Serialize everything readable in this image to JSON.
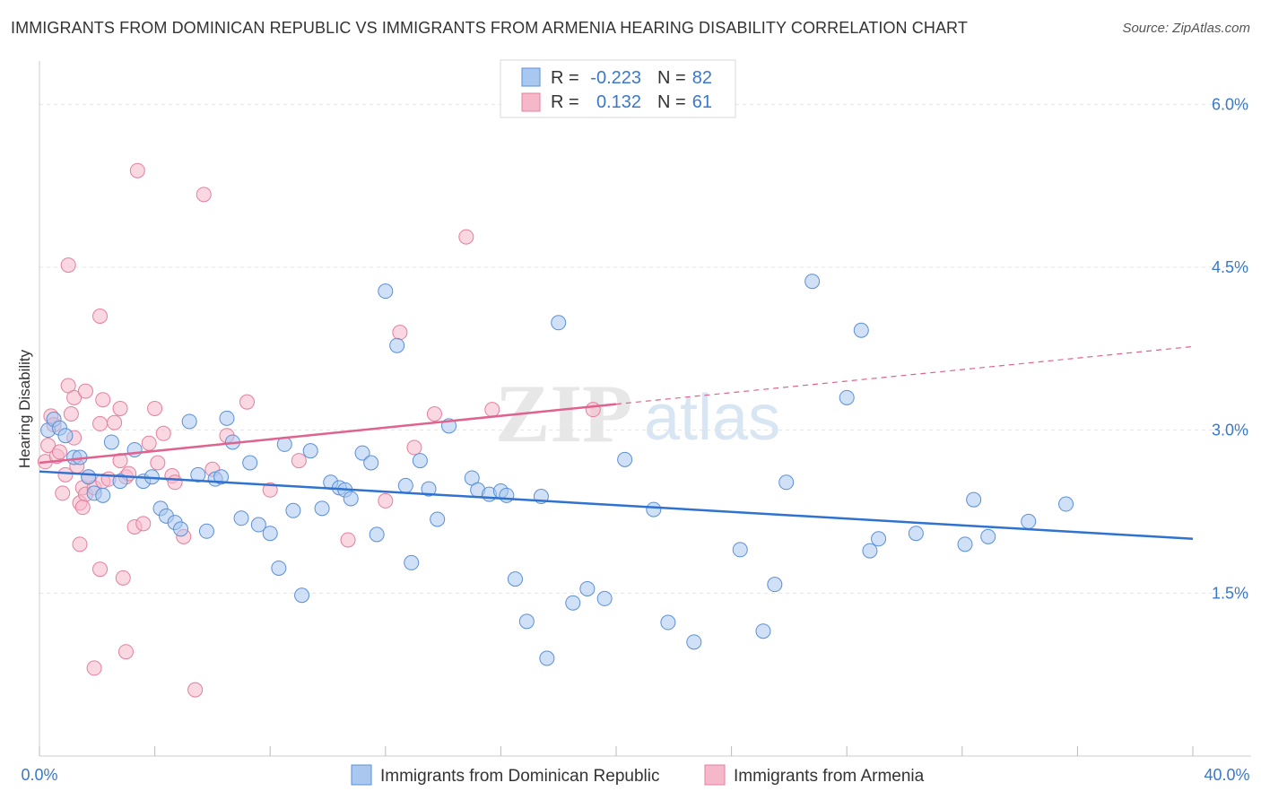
{
  "title": "IMMIGRANTS FROM DOMINICAN REPUBLIC VS IMMIGRANTS FROM ARMENIA HEARING DISABILITY CORRELATION CHART",
  "source": "Source: ZipAtlas.com",
  "watermark": {
    "zip": "ZIP",
    "atlas": "atlas"
  },
  "colors": {
    "blue_fill": "#a9c8f0",
    "blue_stroke": "#5b8fd6",
    "blue_line": "#2f72d0",
    "pink_fill": "#f5b8ca",
    "pink_stroke": "#e47fa0",
    "pink_line": "#e0628e",
    "value_text": "#3a78c9",
    "grid": "#e4e4e4"
  },
  "legend": {
    "row1": {
      "r_label": "R =",
      "r_value": "-0.223",
      "n_label": "N =",
      "n_value": "82"
    },
    "row2": {
      "r_label": "R =",
      "r_value": "0.132",
      "n_label": "N =",
      "n_value": "61"
    }
  },
  "chart_data": {
    "type": "scatter",
    "title": "IMMIGRANTS FROM DOMINICAN REPUBLIC VS IMMIGRANTS FROM ARMENIA HEARING DISABILITY CORRELATION CHART",
    "xlabel": "",
    "ylabel": "Hearing Disability",
    "xlim": [
      0,
      40
    ],
    "ylim": [
      0,
      6.3
    ],
    "x_tick_labels": [
      "0.0%",
      "40.0%"
    ],
    "y_ticks": [
      1.5,
      3.0,
      4.5,
      6.0
    ],
    "y_tick_labels": [
      "1.5%",
      "3.0%",
      "4.5%",
      "6.0%"
    ],
    "grid": true,
    "legend_position": "top-center",
    "series": [
      {
        "name": "Immigrants from Dominican Republic",
        "color": "#a9c8f0",
        "r": -0.223,
        "n": 82,
        "trend": {
          "x": [
            0,
            40
          ],
          "y": [
            2.62,
            2.0
          ]
        },
        "points": [
          [
            0.3,
            3.0
          ],
          [
            0.5,
            3.1
          ],
          [
            0.7,
            3.02
          ],
          [
            0.9,
            2.95
          ],
          [
            1.2,
            2.75
          ],
          [
            1.4,
            2.75
          ],
          [
            1.7,
            2.57
          ],
          [
            1.9,
            2.42
          ],
          [
            2.2,
            2.4
          ],
          [
            2.5,
            2.89
          ],
          [
            2.8,
            2.53
          ],
          [
            3.3,
            2.82
          ],
          [
            3.6,
            2.53
          ],
          [
            3.9,
            2.57
          ],
          [
            4.2,
            2.28
          ],
          [
            4.4,
            2.21
          ],
          [
            4.7,
            2.15
          ],
          [
            4.9,
            2.09
          ],
          [
            5.2,
            3.08
          ],
          [
            5.5,
            2.59
          ],
          [
            5.8,
            2.07
          ],
          [
            6.1,
            2.55
          ],
          [
            6.3,
            2.57
          ],
          [
            6.5,
            3.11
          ],
          [
            6.7,
            2.89
          ],
          [
            7.0,
            2.19
          ],
          [
            7.3,
            2.7
          ],
          [
            7.6,
            2.13
          ],
          [
            8.0,
            2.05
          ],
          [
            8.3,
            1.73
          ],
          [
            8.5,
            2.87
          ],
          [
            8.8,
            2.26
          ],
          [
            9.1,
            1.48
          ],
          [
            9.4,
            2.81
          ],
          [
            9.8,
            2.28
          ],
          [
            10.1,
            2.52
          ],
          [
            10.4,
            2.47
          ],
          [
            10.6,
            2.45
          ],
          [
            10.8,
            2.37
          ],
          [
            11.2,
            2.79
          ],
          [
            11.5,
            2.7
          ],
          [
            11.7,
            2.04
          ],
          [
            12.0,
            4.28
          ],
          [
            12.4,
            3.78
          ],
          [
            12.7,
            2.49
          ],
          [
            12.9,
            1.78
          ],
          [
            13.2,
            2.72
          ],
          [
            13.5,
            2.46
          ],
          [
            13.8,
            2.18
          ],
          [
            14.2,
            3.04
          ],
          [
            15.0,
            2.56
          ],
          [
            15.2,
            2.45
          ],
          [
            15.6,
            2.41
          ],
          [
            16.0,
            2.44
          ],
          [
            16.2,
            2.4
          ],
          [
            16.5,
            1.63
          ],
          [
            16.9,
            1.24
          ],
          [
            17.4,
            2.39
          ],
          [
            17.6,
            0.9
          ],
          [
            18.0,
            3.99
          ],
          [
            18.5,
            1.41
          ],
          [
            19.0,
            1.54
          ],
          [
            19.6,
            1.45
          ],
          [
            20.3,
            2.73
          ],
          [
            21.3,
            2.27
          ],
          [
            21.8,
            1.23
          ],
          [
            22.7,
            1.05
          ],
          [
            24.3,
            1.9
          ],
          [
            25.1,
            1.15
          ],
          [
            25.5,
            1.58
          ],
          [
            25.9,
            2.52
          ],
          [
            26.8,
            4.37
          ],
          [
            28.0,
            3.3
          ],
          [
            28.5,
            3.92
          ],
          [
            28.8,
            1.89
          ],
          [
            29.1,
            2.0
          ],
          [
            30.4,
            2.05
          ],
          [
            32.1,
            1.95
          ],
          [
            32.4,
            2.36
          ],
          [
            32.9,
            2.02
          ],
          [
            34.3,
            2.16
          ],
          [
            35.6,
            2.32
          ]
        ]
      },
      {
        "name": "Immigrants from Armenia",
        "color": "#f5b8ca",
        "r": 0.132,
        "n": 61,
        "trend": {
          "x": [
            0,
            20
          ],
          "y": [
            2.7,
            3.24
          ]
        },
        "trend_dashed": {
          "x": [
            20,
            40
          ],
          "y": [
            3.24,
            3.77
          ]
        },
        "points": [
          [
            0.2,
            2.71
          ],
          [
            0.3,
            2.86
          ],
          [
            0.4,
            3.13
          ],
          [
            0.5,
            3.05
          ],
          [
            0.6,
            2.76
          ],
          [
            0.7,
            2.8
          ],
          [
            0.8,
            2.42
          ],
          [
            0.9,
            2.59
          ],
          [
            1.0,
            3.41
          ],
          [
            1.1,
            3.15
          ],
          [
            1.2,
            2.93
          ],
          [
            1.3,
            2.67
          ],
          [
            1.4,
            2.33
          ],
          [
            1.5,
            2.47
          ],
          [
            1.6,
            2.41
          ],
          [
            1.7,
            2.57
          ],
          [
            1.9,
            2.47
          ],
          [
            2.1,
            3.06
          ],
          [
            2.2,
            2.53
          ],
          [
            2.4,
            2.55
          ],
          [
            2.6,
            3.07
          ],
          [
            2.8,
            2.72
          ],
          [
            3.0,
            2.57
          ],
          [
            3.1,
            2.6
          ],
          [
            3.3,
            2.11
          ],
          [
            3.6,
            2.14
          ],
          [
            3.8,
            2.88
          ],
          [
            4.1,
            2.7
          ],
          [
            4.3,
            2.97
          ],
          [
            4.6,
            2.58
          ],
          [
            1.0,
            4.52
          ],
          [
            2.1,
            4.05
          ],
          [
            3.4,
            5.39
          ],
          [
            5.7,
            5.17
          ],
          [
            1.4,
            1.95
          ],
          [
            2.1,
            1.72
          ],
          [
            2.9,
            1.64
          ],
          [
            3.0,
            0.96
          ],
          [
            1.9,
            0.81
          ],
          [
            5.4,
            0.61
          ],
          [
            1.2,
            3.3
          ],
          [
            1.6,
            3.36
          ],
          [
            1.5,
            2.29
          ],
          [
            2.2,
            3.28
          ],
          [
            2.8,
            3.2
          ],
          [
            4.0,
            3.2
          ],
          [
            4.7,
            2.52
          ],
          [
            5.0,
            2.02
          ],
          [
            6.0,
            2.64
          ],
          [
            7.2,
            3.26
          ],
          [
            8.0,
            2.45
          ],
          [
            9.0,
            2.72
          ],
          [
            10.7,
            1.99
          ],
          [
            12.0,
            2.35
          ],
          [
            12.5,
            3.9
          ],
          [
            13.0,
            2.84
          ],
          [
            13.7,
            3.15
          ],
          [
            14.8,
            4.78
          ],
          [
            15.7,
            3.19
          ],
          [
            19.2,
            3.19
          ],
          [
            6.5,
            2.95
          ]
        ]
      }
    ]
  },
  "bottom_legend": [
    {
      "label": "Immigrants from Dominican Republic"
    },
    {
      "label": "Immigrants from Armenia"
    }
  ]
}
